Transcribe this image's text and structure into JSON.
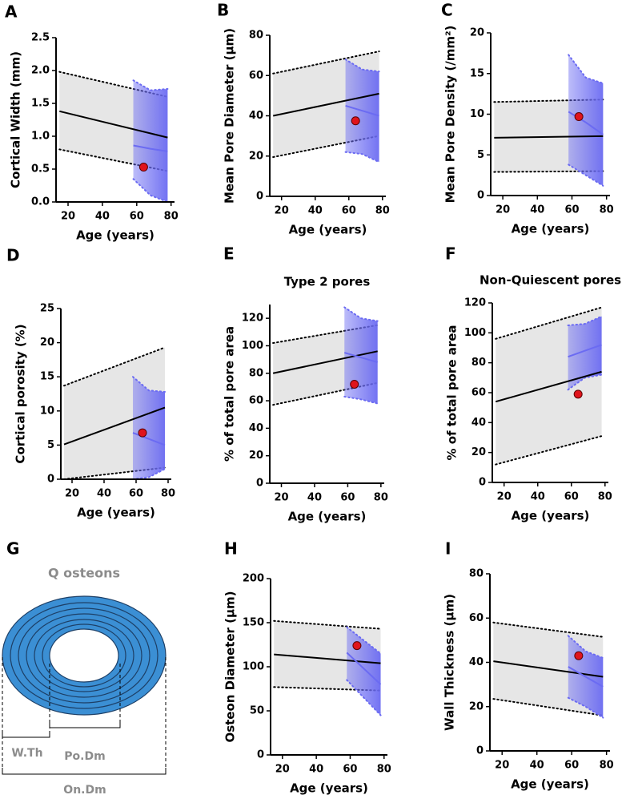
{
  "chart_data": [
    {
      "type": "band-fit",
      "panel": "A",
      "ylabel": "Cortical Width (mm)",
      "xlabel": "Age (years)",
      "xlim": [
        13,
        82
      ],
      "xticks": [
        20,
        40,
        60,
        80
      ],
      "ylim": [
        0,
        2.5
      ],
      "yticks": [
        {
          "value": 0,
          "label": "0.0"
        },
        0.5,
        {
          "value": 1,
          "label": "1.0"
        },
        1.5,
        {
          "value": 2,
          "label": "2.0"
        },
        2.5
      ],
      "reference": {
        "color": "#e6e6e6",
        "line_color": "#000000",
        "x": [
          15,
          78
        ],
        "fit": [
          1.38,
          0.98
        ],
        "lower": [
          0.8,
          0.47
        ],
        "upper": [
          1.98,
          1.6
        ]
      },
      "patients": {
        "color": "#6b6bf2",
        "x": [
          58,
          68,
          78
        ],
        "fit": [
          0.86,
          0.81,
          0.77
        ],
        "lower": [
          0.35,
          0.1,
          0
        ],
        "upper": [
          1.85,
          1.7,
          1.72
        ]
      },
      "point": {
        "color": "#e0141c",
        "x": 64,
        "y": 0.53
      }
    },
    {
      "type": "band-fit",
      "panel": "B",
      "ylabel": "Mean Pore Diameter (µm)",
      "xlabel": "Age (years)",
      "xlim": [
        13,
        82
      ],
      "xticks": [
        20,
        40,
        60,
        80
      ],
      "ylim": [
        0,
        80
      ],
      "yticks": [
        0,
        20,
        40,
        60,
        80
      ],
      "reference": {
        "color": "#e6e6e6",
        "line_color": "#000000",
        "x": [
          15,
          78
        ],
        "fit": [
          40,
          51
        ],
        "lower": [
          19.5,
          30
        ],
        "upper": [
          61,
          72
        ]
      },
      "patients": {
        "color": "#6b6bf2",
        "x": [
          58,
          68,
          78
        ],
        "fit": [
          45,
          42.5,
          40
        ],
        "lower": [
          22,
          21,
          17
        ],
        "upper": [
          68,
          63,
          62
        ]
      },
      "point": {
        "color": "#e0141c",
        "x": 64,
        "y": 37.5
      }
    },
    {
      "type": "band-fit",
      "panel": "C",
      "ylabel": "Mean Pore Density (/mm²)",
      "xlabel": "Age (years)",
      "xlim": [
        13,
        82
      ],
      "xticks": [
        20,
        40,
        60,
        80
      ],
      "ylim": [
        0,
        20
      ],
      "yticks": [
        0,
        5,
        10,
        15,
        20
      ],
      "reference": {
        "color": "#e6e6e6",
        "line_color": "#000000",
        "x": [
          15,
          78
        ],
        "fit": [
          7.1,
          7.3
        ],
        "lower": [
          2.9,
          3.0
        ],
        "upper": [
          11.5,
          11.8
        ]
      },
      "patients": {
        "color": "#6b6bf2",
        "x": [
          58,
          68,
          78
        ],
        "fit": [
          10.3,
          9,
          7.5
        ],
        "lower": [
          3.8,
          2.5,
          1.2
        ],
        "upper": [
          17.3,
          14.5,
          13.8
        ]
      },
      "point": {
        "color": "#e0141c",
        "x": 64,
        "y": 9.7
      }
    },
    {
      "type": "band-fit",
      "panel": "D",
      "ylabel": "Cortical porosity (%)",
      "xlabel": "Age (years)",
      "xlim": [
        13,
        82
      ],
      "xticks": [
        20,
        40,
        60,
        80
      ],
      "ylim": [
        0,
        25
      ],
      "yticks": [
        0,
        5,
        10,
        15,
        20,
        25
      ],
      "reference": {
        "color": "#e6e6e6",
        "line_color": "#000000",
        "x": [
          15,
          78
        ],
        "fit": [
          5.1,
          10.5
        ],
        "lower": [
          0,
          1.7
        ],
        "upper": [
          13.7,
          19.3
        ]
      },
      "patients": {
        "color": "#6b6bf2",
        "x": [
          58,
          68,
          78
        ],
        "fit": [
          6.8,
          5.9,
          5.0
        ],
        "lower": [
          0,
          0.3,
          1.5
        ],
        "upper": [
          15,
          13,
          12.8
        ]
      },
      "point": {
        "color": "#e0141c",
        "x": 64,
        "y": 6.8
      }
    },
    {
      "type": "band-fit",
      "panel": "E",
      "title": "Type 2 pores",
      "ylabel": "% of total pore area",
      "xlabel": "Age (years)",
      "xlim": [
        13,
        82
      ],
      "xticks": [
        20,
        40,
        60,
        80
      ],
      "ylim": [
        0,
        130
      ],
      "yticks": [
        0,
        20,
        40,
        60,
        80,
        100,
        120
      ],
      "reference": {
        "color": "#e6e6e6",
        "line_color": "#000000",
        "x": [
          15,
          78
        ],
        "fit": [
          80,
          96
        ],
        "lower": [
          57,
          73
        ],
        "upper": [
          102,
          115
        ]
      },
      "patients": {
        "color": "#6b6bf2",
        "x": [
          58,
          68,
          78
        ],
        "fit": [
          95,
          91.5,
          88
        ],
        "lower": [
          63,
          61,
          58
        ],
        "upper": [
          128,
          120,
          118
        ]
      },
      "point": {
        "color": "#e0141c",
        "x": 64,
        "y": 72
      }
    },
    {
      "type": "band-fit",
      "panel": "F",
      "title": "Non-Quiescent pores",
      "ylabel": "% of total pore area",
      "xlabel": "Age (years)",
      "xlim": [
        13,
        82
      ],
      "xticks": [
        20,
        40,
        60,
        80
      ],
      "ylim": [
        0,
        120
      ],
      "yticks": [
        0,
        20,
        40,
        60,
        80,
        100,
        120
      ],
      "reference": {
        "color": "#e6e6e6",
        "line_color": "#000000",
        "x": [
          15,
          78
        ],
        "fit": [
          54,
          74
        ],
        "lower": [
          12,
          31
        ],
        "upper": [
          96,
          117
        ]
      },
      "patients": {
        "color": "#6b6bf2",
        "x": [
          58,
          68,
          78
        ],
        "fit": [
          84,
          88,
          92
        ],
        "lower": [
          62,
          70,
          72
        ],
        "upper": [
          105,
          106,
          111
        ]
      },
      "point": {
        "color": "#e0141c",
        "x": 64,
        "y": 59
      }
    },
    {
      "type": "band-fit",
      "panel": "H",
      "ylabel": "Osteon Diameter (µm)",
      "xlabel": "Age (years)",
      "xlim": [
        13,
        82
      ],
      "xticks": [
        20,
        40,
        60,
        80
      ],
      "ylim": [
        0,
        200
      ],
      "yticks": [
        0,
        50,
        100,
        150,
        200
      ],
      "reference": {
        "color": "#e6e6e6",
        "line_color": "#000000",
        "x": [
          15,
          78
        ],
        "fit": [
          114,
          104
        ],
        "lower": [
          77,
          73
        ],
        "upper": [
          152,
          143
        ]
      },
      "patients": {
        "color": "#6b6bf2",
        "x": [
          58,
          68,
          78
        ],
        "fit": [
          116,
          98,
          80
        ],
        "lower": [
          85,
          65,
          45
        ],
        "upper": [
          145,
          130,
          115
        ]
      },
      "point": {
        "color": "#e0141c",
        "x": 64,
        "y": 124
      }
    },
    {
      "type": "band-fit",
      "panel": "I",
      "ylabel": "Wall Thickness (µm)",
      "xlabel": "Age (years)",
      "xlim": [
        13,
        82
      ],
      "xticks": [
        20,
        40,
        60,
        80
      ],
      "ylim": [
        0,
        80
      ],
      "yticks": [
        0,
        20,
        40,
        60,
        80
      ],
      "reference": {
        "color": "#e6e6e6",
        "line_color": "#000000",
        "x": [
          15,
          78
        ],
        "fit": [
          40.5,
          33.5
        ],
        "lower": [
          23.5,
          16
        ],
        "upper": [
          58,
          51.5
        ]
      },
      "patients": {
        "color": "#6b6bf2",
        "x": [
          58,
          68,
          78
        ],
        "fit": [
          38,
          33.5,
          29
        ],
        "lower": [
          24,
          20,
          15
        ],
        "upper": [
          52,
          45,
          42
        ]
      },
      "point": {
        "color": "#e0141c",
        "x": 64,
        "y": 43
      }
    }
  ],
  "diagram": {
    "panel": "G",
    "title": "Q osteons",
    "labels": [
      "W.Th",
      "Po.Dm",
      "On.Dm"
    ]
  }
}
